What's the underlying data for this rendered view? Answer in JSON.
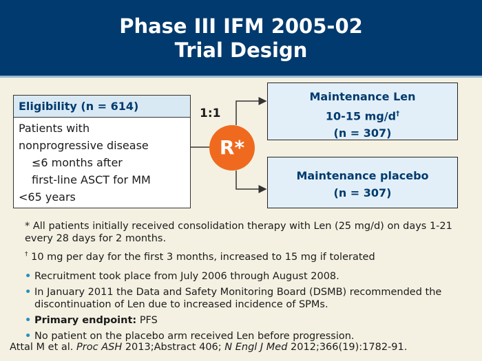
{
  "header": {
    "title_line1": "Phase III IFM 2005-02",
    "title_line2": "Trial Design"
  },
  "eligibility": {
    "heading": "Eligibility (n = 614)",
    "lines": [
      "Patients with",
      "nonprogressive disease",
      "≤6 months after",
      "first-line ASCT for MM",
      "<65 years"
    ]
  },
  "randomization": {
    "ratio": "1:1",
    "symbol": "R*"
  },
  "arms": [
    {
      "line1": "Maintenance Len",
      "line2": "10-15 mg/d",
      "line2_mark": "†",
      "line3": "(n = 307)"
    },
    {
      "line1": "Maintenance placebo",
      "line2": "(n = 307)"
    }
  ],
  "footnotes": {
    "star_mark": "*",
    "star_text": "All patients initially received consolidation therapy with Len (25 mg/d) on days 1-21 every 28 days for 2 months.",
    "dagger_mark": "†",
    "dagger_text": "10 mg per day for the first 3 months, increased to 15 mg if tolerated"
  },
  "bullets": {
    "b1": "Recruitment took place from July 2006 through August 2008.",
    "b2": "In January 2011 the Data and Safety Monitoring Board (DSMB) recommended the discontinuation of Len due to increased incidence of SPMs.",
    "b3_label": "Primary endpoint:",
    "b3_text": "PFS",
    "b4": "No patient on the placebo arm received Len before progression."
  },
  "citation": {
    "part1": "Attal M et al. ",
    "journal1": "Proc ASH",
    "part2": " 2013;Abstract 406; ",
    "journal2": "N Engl J Med",
    "part3": " 2012;366(19):1782-91."
  },
  "colors": {
    "header_bg": "#003a6e",
    "background": "#f4f1e2",
    "accent_orange": "#ef6a1e",
    "box_fill": "#e2eff8",
    "bullet": "#2a8fbd"
  }
}
